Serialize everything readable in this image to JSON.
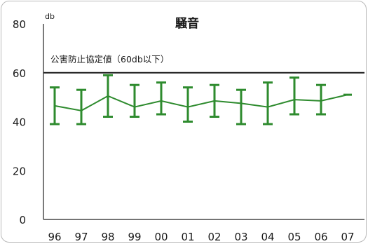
{
  "chart_data": {
    "type": "line",
    "title": "騒音",
    "ylabel": "db",
    "xlabel": "",
    "categories": [
      "96",
      "97",
      "98",
      "99",
      "00",
      "01",
      "02",
      "03",
      "04",
      "05",
      "06",
      "07"
    ],
    "ylim": [
      0,
      80
    ],
    "yticks": [
      0,
      20,
      40,
      60,
      80
    ],
    "series": [
      {
        "values": [
          46.5,
          44.5,
          50.5,
          46,
          48.5,
          46,
          48.5,
          47.5,
          46,
          49,
          48.5,
          51
        ],
        "error_max": [
          54,
          53,
          59,
          55,
          56,
          54,
          55,
          53,
          56,
          58,
          55,
          null
        ],
        "error_min": [
          39,
          39,
          42,
          42,
          43,
          40,
          42,
          39,
          39,
          43,
          43,
          null
        ],
        "color": "#2e8b2e"
      }
    ],
    "reference_line": {
      "value": 60,
      "label": "公害防止協定値（60db以下）",
      "color": "#1a1a1a"
    },
    "grid": false,
    "legend": "none"
  }
}
